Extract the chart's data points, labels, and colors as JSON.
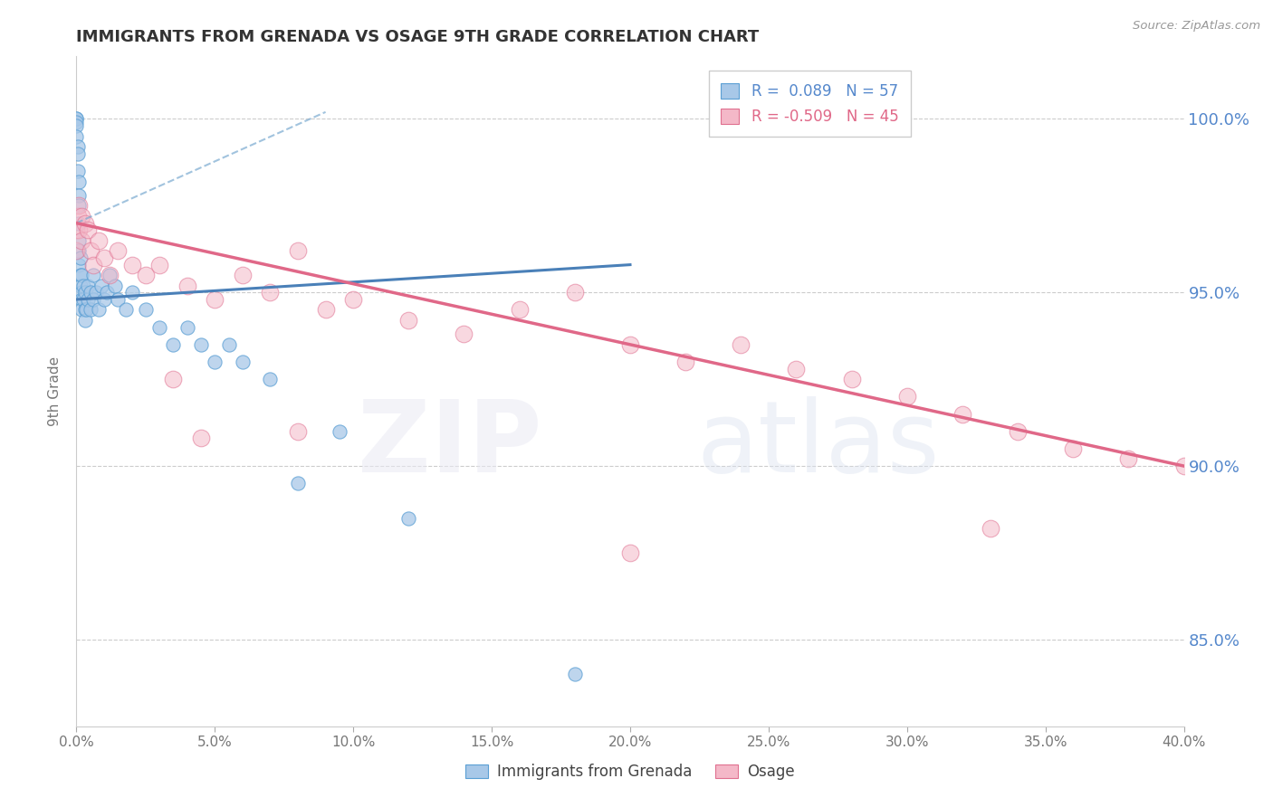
{
  "title": "IMMIGRANTS FROM GRENADA VS OSAGE 9TH GRADE CORRELATION CHART",
  "source": "Source: ZipAtlas.com",
  "ylabel": "9th Grade",
  "xlabel_legend1": "Immigrants from Grenada",
  "xlabel_legend2": "Osage",
  "R_blue": 0.089,
  "N_blue": 57,
  "R_pink": -0.509,
  "N_pink": 45,
  "blue_color": "#a8c8e8",
  "blue_edge_color": "#5a9fd4",
  "pink_color": "#f4b8c8",
  "pink_edge_color": "#e07090",
  "blue_line_color": "#4a80b8",
  "pink_line_color": "#e06888",
  "blue_dash_color": "#7aaad0",
  "ylim_min": 82.5,
  "ylim_max": 101.8,
  "xlim_min": 0,
  "xlim_max": 40,
  "y_ticks": [
    85.0,
    90.0,
    95.0,
    100.0
  ],
  "blue_scatter_x": [
    0.0,
    0.0,
    0.0,
    0.0,
    0.0,
    0.05,
    0.05,
    0.05,
    0.1,
    0.1,
    0.1,
    0.1,
    0.1,
    0.1,
    0.1,
    0.15,
    0.15,
    0.15,
    0.2,
    0.2,
    0.2,
    0.2,
    0.25,
    0.25,
    0.3,
    0.3,
    0.3,
    0.35,
    0.4,
    0.4,
    0.5,
    0.5,
    0.6,
    0.6,
    0.7,
    0.8,
    0.9,
    1.0,
    1.1,
    1.2,
    1.4,
    1.5,
    1.8,
    2.0,
    2.5,
    3.0,
    3.5,
    4.0,
    4.5,
    5.0,
    5.5,
    6.0,
    7.0,
    8.0,
    9.5,
    12.0,
    18.0
  ],
  "blue_scatter_y": [
    100.0,
    100.0,
    99.9,
    99.8,
    99.5,
    99.2,
    99.0,
    98.5,
    98.2,
    97.8,
    97.5,
    97.0,
    96.5,
    96.2,
    95.8,
    96.0,
    95.5,
    95.2,
    95.5,
    95.0,
    94.8,
    94.5,
    95.2,
    94.8,
    95.0,
    94.5,
    94.2,
    94.5,
    94.8,
    95.2,
    95.0,
    94.5,
    95.5,
    94.8,
    95.0,
    94.5,
    95.2,
    94.8,
    95.0,
    95.5,
    95.2,
    94.8,
    94.5,
    95.0,
    94.5,
    94.0,
    93.5,
    94.0,
    93.5,
    93.0,
    93.5,
    93.0,
    92.5,
    89.5,
    91.0,
    88.5,
    84.0
  ],
  "pink_scatter_x": [
    0.0,
    0.0,
    0.05,
    0.1,
    0.1,
    0.2,
    0.2,
    0.3,
    0.4,
    0.5,
    0.6,
    0.8,
    1.0,
    1.2,
    1.5,
    2.0,
    2.5,
    3.0,
    4.0,
    5.0,
    6.0,
    7.0,
    8.0,
    9.0,
    10.0,
    12.0,
    14.0,
    16.0,
    18.0,
    20.0,
    22.0,
    24.0,
    26.0,
    28.0,
    30.0,
    32.0,
    34.0,
    36.0,
    38.0,
    40.0,
    8.0,
    3.5,
    4.5,
    20.0,
    33.0
  ],
  "pink_scatter_y": [
    96.8,
    96.2,
    97.2,
    97.5,
    96.8,
    97.2,
    96.5,
    97.0,
    96.8,
    96.2,
    95.8,
    96.5,
    96.0,
    95.5,
    96.2,
    95.8,
    95.5,
    95.8,
    95.2,
    94.8,
    95.5,
    95.0,
    96.2,
    94.5,
    94.8,
    94.2,
    93.8,
    94.5,
    95.0,
    93.5,
    93.0,
    93.5,
    92.8,
    92.5,
    92.0,
    91.5,
    91.0,
    90.5,
    90.2,
    90.0,
    91.0,
    92.5,
    90.8,
    87.5,
    88.2
  ],
  "blue_trend_x0": 0.0,
  "blue_trend_y0": 94.8,
  "blue_trend_x1": 20.0,
  "blue_trend_y1": 95.8,
  "blue_dash_x0": 0.0,
  "blue_dash_y0": 97.0,
  "blue_dash_x1": 9.0,
  "blue_dash_y1": 100.2,
  "pink_trend_x0": 0.0,
  "pink_trend_y0": 97.0,
  "pink_trend_x1": 40.0,
  "pink_trend_y1": 90.0
}
